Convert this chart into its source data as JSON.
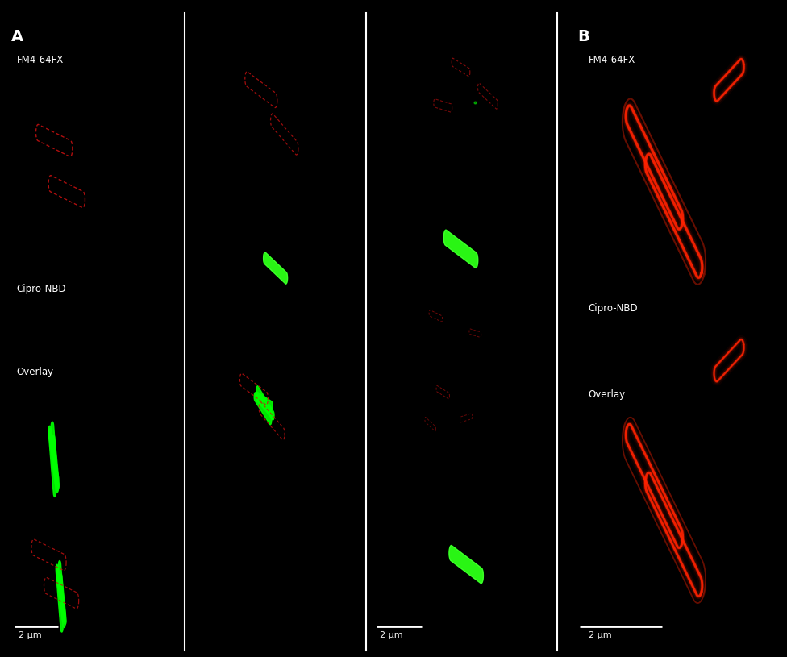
{
  "fig_width": 9.76,
  "fig_height": 8.15,
  "dpi": 100,
  "bg_color": "#000000",
  "label_A": "A",
  "label_B": "B",
  "label_FM4": "FM4-64FX",
  "label_Cipro": "Cipro-NBD",
  "label_Overlay": "Overlay",
  "scale_bar_text": "2 μm",
  "text_color": "#ffffff",
  "red_dim": "#cc1111",
  "red_bright": "#ff2200",
  "green_bright": "#00ff00",
  "green_dim": "#00cc00"
}
